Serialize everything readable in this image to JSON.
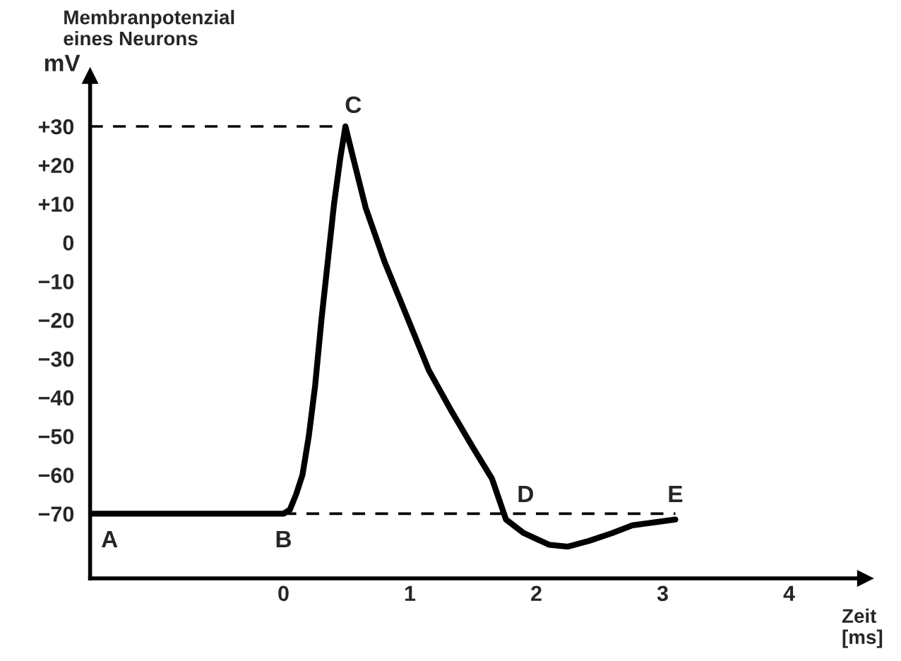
{
  "chart_data": {
    "type": "line",
    "title": "Membranpotenzial\neines Neurons",
    "xlabel": "Zeit\n[ms]",
    "ylabel": "mV",
    "xlim": [
      -1.53,
      4.6
    ],
    "ylim": [
      -86.7,
      43
    ],
    "xticks": [
      0,
      1,
      2,
      3,
      4
    ],
    "yticks": [
      {
        "value": 30,
        "label": "+30"
      },
      {
        "value": 20,
        "label": "+20"
      },
      {
        "value": 10,
        "label": "+10"
      },
      0,
      {
        "value": -10,
        "label": "−10"
      },
      {
        "value": -20,
        "label": "−20"
      },
      {
        "value": -30,
        "label": "−30"
      },
      {
        "value": -40,
        "label": "−40"
      },
      {
        "value": -50,
        "label": "−50"
      },
      {
        "value": -60,
        "label": "−60"
      },
      {
        "value": -70,
        "label": "−70"
      }
    ],
    "series": [
      {
        "color": "#000000",
        "line_style": "solid",
        "x": [
          -1.53,
          -0.5,
          0.0,
          0.05,
          0.1,
          0.15,
          0.2,
          0.25,
          0.3,
          0.35,
          0.4,
          0.45,
          0.49,
          0.55,
          0.65,
          0.8,
          1.0,
          1.15,
          1.32,
          1.5,
          1.65,
          1.76,
          1.9,
          2.1,
          2.25,
          2.42,
          2.6,
          2.76,
          3.1
        ],
        "values": [
          -70,
          -70,
          -70,
          -69,
          -65,
          -60,
          -50,
          -37,
          -20,
          -5,
          10,
          22,
          30,
          22,
          9,
          -5,
          -21,
          -33,
          -43,
          -53,
          -61,
          -71.5,
          -75,
          -78,
          -78.5,
          -77,
          -75,
          -73,
          -71.5
        ]
      },
      {
        "color": "#000000",
        "line_style": "dashed",
        "x": [
          -1.53,
          0.49
        ],
        "values": [
          30,
          30
        ]
      },
      {
        "color": "#000000",
        "line_style": "dashed",
        "x": [
          0.0,
          3.1
        ],
        "values": [
          -70,
          -70
        ]
      }
    ],
    "annotations": [
      {
        "text": "A",
        "x": -1.5,
        "y": -70
      },
      {
        "text": "B",
        "x": 0,
        "y": -70
      },
      {
        "text": "C",
        "x": 0.49,
        "y": 30
      },
      {
        "text": "D",
        "x": 1.76,
        "y": -71.5
      },
      {
        "text": "E",
        "x": 3.1,
        "y": -71.5
      }
    ],
    "grid": false,
    "legend": false,
    "marker": "none"
  }
}
